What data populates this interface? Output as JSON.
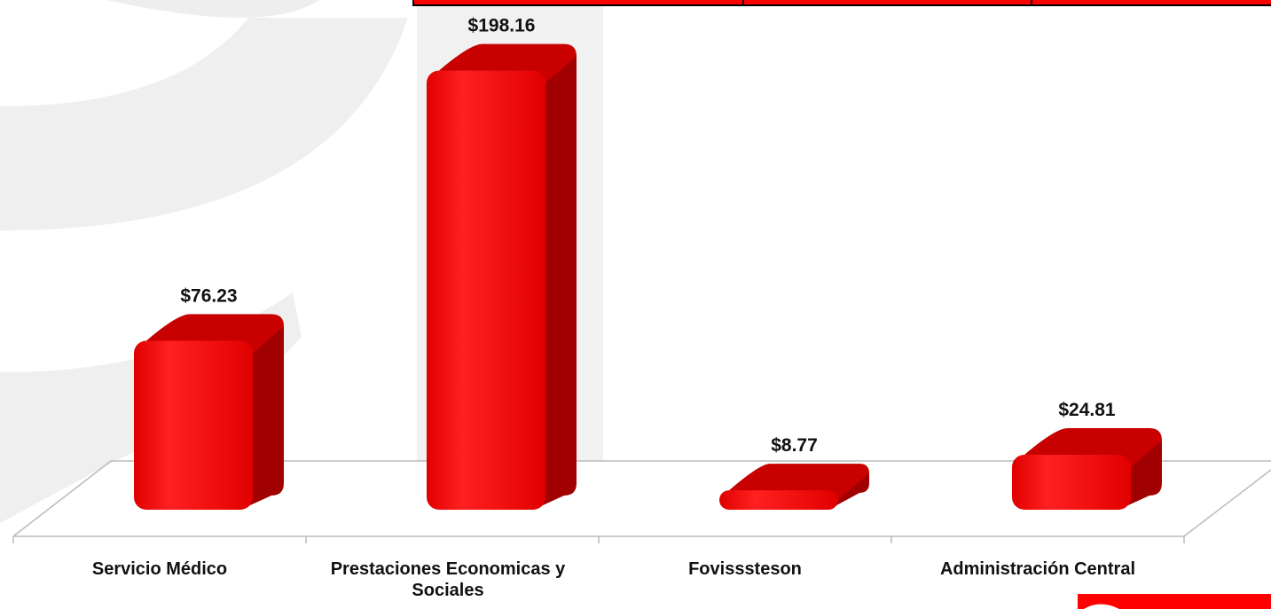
{
  "chart_data": {
    "type": "bar3d",
    "categories": [
      "Servicio Médico",
      "Prestaciones Economicas y Sociales",
      "Fovisssteson",
      "Administración Central"
    ],
    "values": [
      76.23,
      198.16,
      8.77,
      24.81
    ],
    "value_labels": [
      "$76.23",
      "$198.16",
      "$8.77",
      "$24.81"
    ],
    "color": "#ff0000"
  }
}
